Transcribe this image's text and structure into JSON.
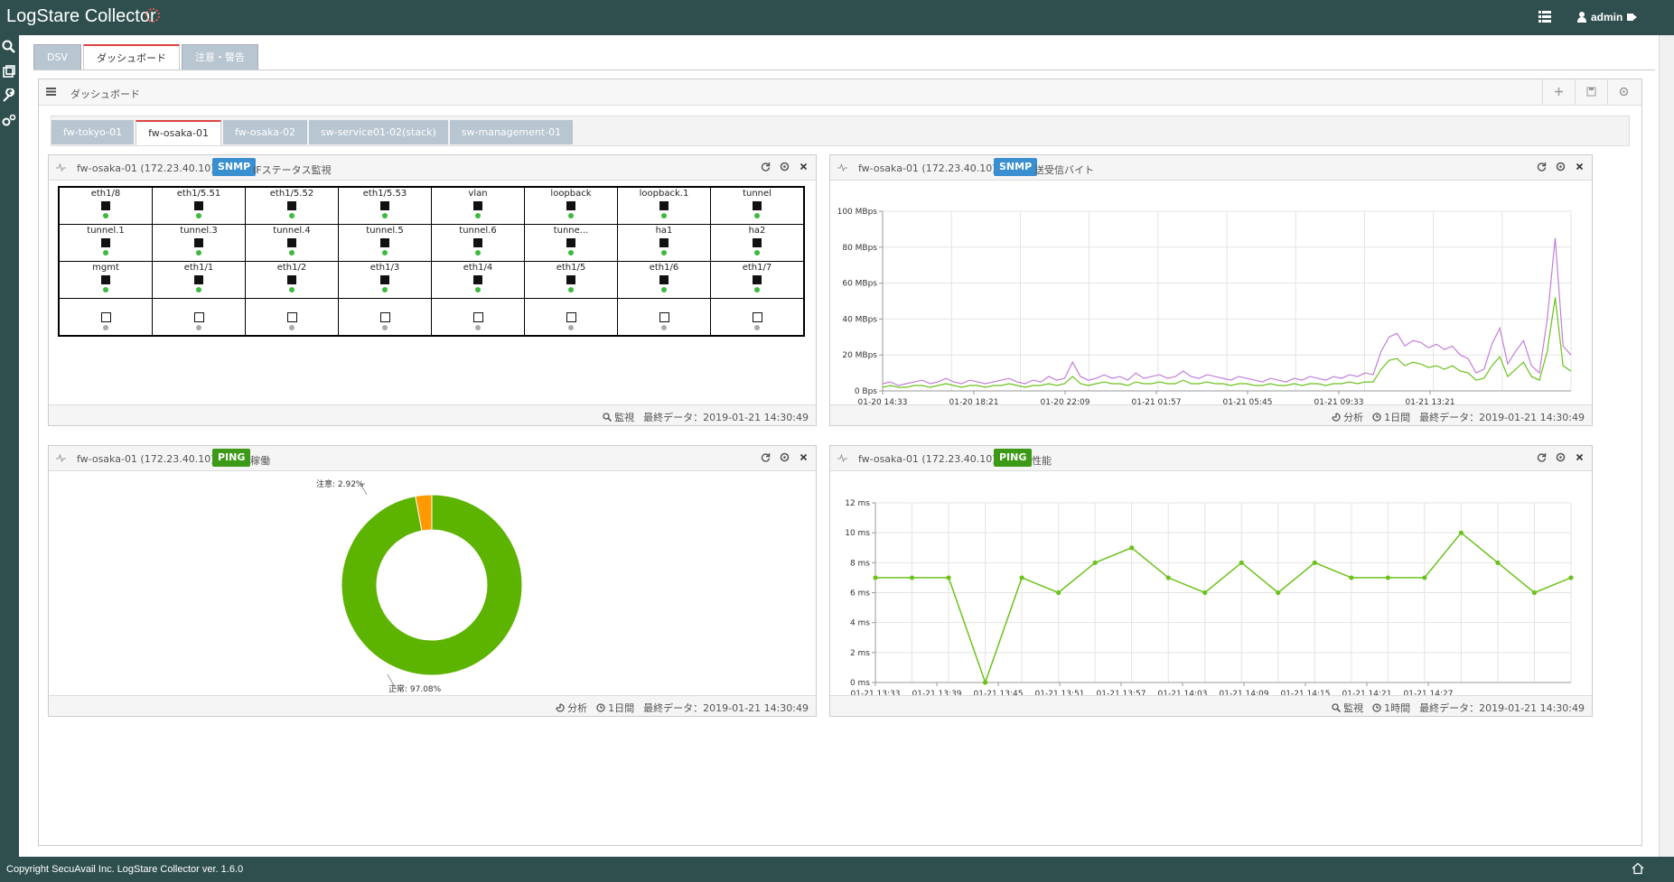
{
  "app": {
    "title": "LogStare Collector",
    "user": "admin"
  },
  "footer": {
    "copyright": "Copyright SecuAvail Inc. LogStare Collector ver. 1.6.0"
  },
  "main_tabs": [
    {
      "label": "DSV",
      "active": false
    },
    {
      "label": "ダッシュボード",
      "active": true
    },
    {
      "label": "注意・警告",
      "active": false
    }
  ],
  "dashboard": {
    "title": "ダッシュボード"
  },
  "sub_tabs": [
    {
      "label": "fw-tokyo-01",
      "active": false
    },
    {
      "label": "fw-osaka-01",
      "active": true
    },
    {
      "label": "fw-osaka-02",
      "active": false
    },
    {
      "label": "sw-service01-02(stack)",
      "active": false
    },
    {
      "label": "sw-management-01",
      "active": false
    }
  ],
  "panels": {
    "if_status": {
      "host": "fw-osaka-01 (172.23.40.10)",
      "badge": "SNMP",
      "subtitle": "IFステータス監視",
      "interfaces": [
        [
          "eth1/8",
          "eth1/5.51",
          "eth1/5.52",
          "eth1/5.53",
          "vlan",
          "loopback",
          "loopback.1",
          "tunnel"
        ],
        [
          "tunnel.1",
          "tunnel.3",
          "tunnel.4",
          "tunnel.5",
          "tunnel.6",
          "tunne...",
          "ha1",
          "ha2"
        ],
        [
          "mgmt",
          "eth1/1",
          "eth1/2",
          "eth1/3",
          "eth1/4",
          "eth1/5",
          "eth1/6",
          "eth1/7"
        ],
        [
          "",
          "",
          "",
          "",
          "",
          "",
          "",
          ""
        ]
      ],
      "footer_link": "監視",
      "last_data": "最終データ：2019-01-21 14:30:49"
    },
    "traffic": {
      "host": "fw-osaka-01 (172.23.40.10)",
      "badge": "SNMP",
      "subtitle": "送受信バイト",
      "footer_link": "分析",
      "footer_period": "1日間",
      "last_data": "最終データ：2019-01-21 14:30:49"
    },
    "ping_uptime": {
      "host": "fw-osaka-01 (172.23.40.10)",
      "badge": "PING",
      "subtitle": "稼働",
      "footer_link": "分析",
      "footer_period": "1日間",
      "last_data": "最終データ：2019-01-21 14:30:49"
    },
    "ping_perf": {
      "host": "fw-osaka-01 (172.23.40.10)",
      "badge": "PING",
      "subtitle": "性能",
      "footer_link": "監視",
      "footer_period": "1時間",
      "last_data": "最終データ：2019-01-21 14:30:49"
    }
  },
  "colors": {
    "header": "#2f4f4f",
    "snmp": "#3a8fd1",
    "ping": "#3c9a18",
    "ok": "#5cb300",
    "warn": "#ff9900",
    "sent": "#c27fd6",
    "recv": "#6cc21c"
  },
  "chart_data": [
    {
      "type": "line",
      "title": "",
      "ylim": [
        0,
        100
      ],
      "yticks": [
        "0 Bps",
        "20 MBps",
        "40 MBps",
        "60 MBps",
        "80 MBps",
        "100 MBps"
      ],
      "xticks": [
        "01-20 14:33",
        "01-20 18:21",
        "01-20 22:09",
        "01-21 01:57",
        "01-21 05:45",
        "01-21 09:33",
        "01-21 13:21"
      ],
      "x_range": [
        "01-20 14:33",
        "01-21 14:30"
      ],
      "series": [
        {
          "color": "#c27fd6",
          "values": [
            4,
            5,
            3,
            4,
            5,
            6,
            4,
            5,
            7,
            5,
            4,
            6,
            5,
            4,
            5,
            6,
            7,
            5,
            4,
            6,
            5,
            8,
            6,
            7,
            16,
            8,
            6,
            7,
            9,
            7,
            8,
            6,
            10,
            7,
            8,
            9,
            7,
            8,
            11,
            8,
            7,
            9,
            8,
            7,
            6,
            8,
            7,
            6,
            5,
            7,
            6,
            5,
            7,
            6,
            8,
            7,
            6,
            8,
            7,
            9,
            8,
            10,
            9,
            22,
            30,
            32,
            25,
            28,
            27,
            24,
            26,
            23,
            25,
            20,
            18,
            10,
            12,
            26,
            35,
            15,
            22,
            28,
            14,
            10,
            40,
            85,
            25,
            20
          ]
        },
        {
          "color": "#6cc21c",
          "values": [
            2,
            3,
            2,
            2,
            3,
            3,
            2,
            3,
            4,
            3,
            2,
            3,
            3,
            2,
            3,
            3,
            4,
            3,
            2,
            3,
            3,
            4,
            3,
            4,
            8,
            4,
            3,
            4,
            5,
            4,
            4,
            3,
            5,
            4,
            4,
            5,
            4,
            4,
            6,
            4,
            4,
            5,
            4,
            4,
            3,
            4,
            4,
            3,
            3,
            4,
            3,
            3,
            4,
            3,
            4,
            4,
            3,
            4,
            4,
            5,
            4,
            5,
            5,
            12,
            17,
            18,
            14,
            16,
            15,
            13,
            14,
            12,
            14,
            11,
            10,
            6,
            7,
            14,
            19,
            8,
            12,
            16,
            8,
            6,
            22,
            52,
            14,
            11
          ]
        }
      ]
    },
    {
      "type": "pie",
      "title": "",
      "slices": [
        {
          "label": "正常",
          "value": 97.08,
          "display": "97.08%",
          "color": "#5cb300"
        },
        {
          "label": "注意",
          "value": 2.92,
          "display": "2.92%",
          "color": "#ff9900"
        }
      ]
    },
    {
      "type": "line",
      "title": "",
      "ylim": [
        0,
        12
      ],
      "yticks": [
        "0 ms",
        "2 ms",
        "4 ms",
        "6 ms",
        "8 ms",
        "10 ms",
        "12 ms"
      ],
      "xticks": [
        "01-21 13:33",
        "01-21 13:39",
        "01-21 13:45",
        "01-21 13:51",
        "01-21 13:57",
        "01-21 14:03",
        "01-21 14:09",
        "01-21 14:15",
        "01-21 14:21",
        "01-21 14:27"
      ],
      "series": [
        {
          "color": "#6cc21c",
          "values": [
            7,
            7,
            7,
            0,
            7,
            6,
            8,
            9,
            7,
            6,
            8,
            6,
            8,
            7,
            7,
            7,
            10,
            8,
            6,
            7
          ]
        }
      ]
    }
  ]
}
